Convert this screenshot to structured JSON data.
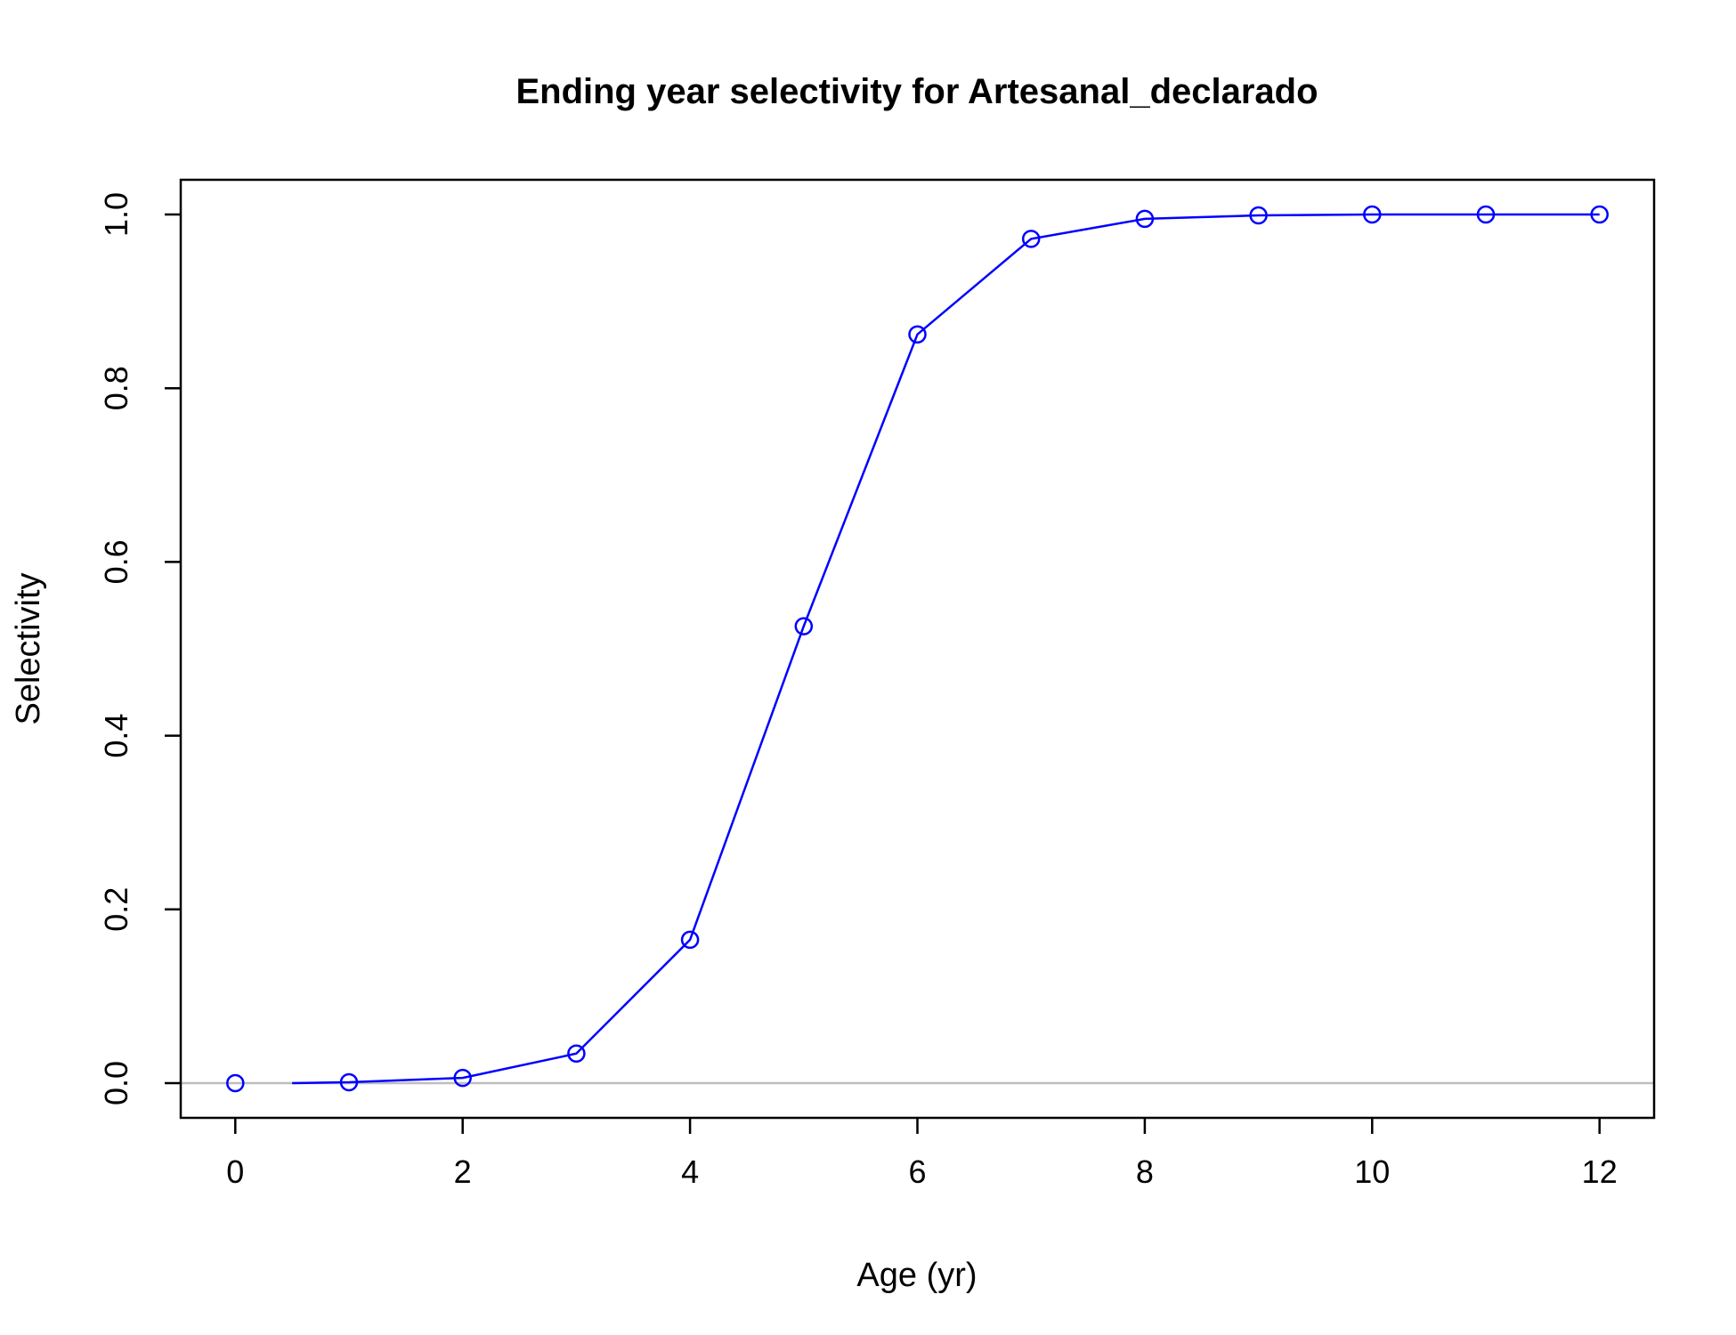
{
  "chart_data": {
    "type": "line",
    "title": "Ending year selectivity for Artesanal_declarado",
    "xlabel": "Age (yr)",
    "ylabel": "Selectivity",
    "xlim": [
      -0.48,
      12.48
    ],
    "ylim": [
      -0.04,
      1.04
    ],
    "xticks": [
      0,
      2,
      4,
      6,
      8,
      10,
      12
    ],
    "xtick_labels": [
      "0",
      "2",
      "4",
      "6",
      "8",
      "10",
      "12"
    ],
    "yticks": [
      0.0,
      0.2,
      0.4,
      0.6,
      0.8,
      1.0
    ],
    "ytick_labels": [
      "0.0",
      "0.2",
      "0.4",
      "0.6",
      "0.8",
      "1.0"
    ],
    "grid": false,
    "reference_line": {
      "y": 0,
      "color": "#bebebe"
    },
    "series": [
      {
        "color": "#0000ff",
        "marker": "open-circle",
        "line_x": [
          0.5,
          1,
          2,
          3,
          4,
          5,
          6,
          7,
          8,
          9,
          10,
          11,
          12
        ],
        "line_y": [
          0.0,
          0.001,
          0.006,
          0.034,
          0.165,
          0.526,
          0.862,
          0.972,
          0.995,
          0.999,
          1.0,
          1.0,
          1.0
        ],
        "x": [
          0,
          1,
          2,
          3,
          4,
          5,
          6,
          7,
          8,
          9,
          10,
          11,
          12
        ],
        "y": [
          0.0,
          0.001,
          0.006,
          0.034,
          0.165,
          0.526,
          0.862,
          0.972,
          0.995,
          0.999,
          1.0,
          1.0,
          1.0
        ]
      }
    ]
  }
}
